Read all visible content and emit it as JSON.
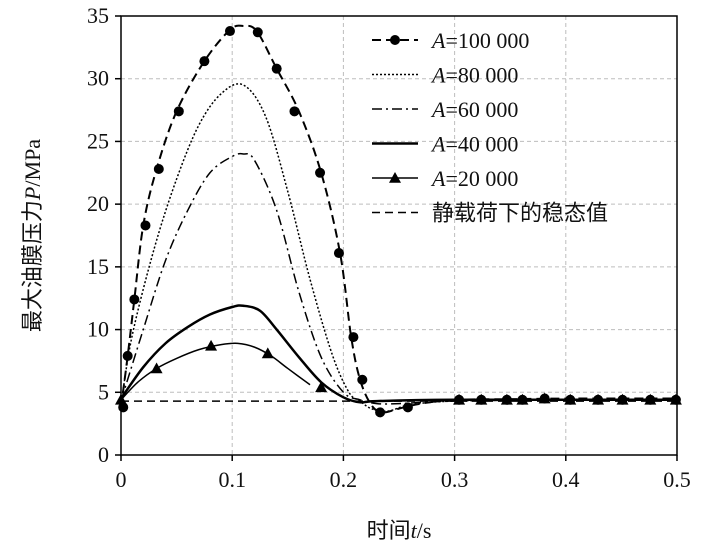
{
  "chart_data": {
    "type": "line",
    "xlabel": {
      "prefix": "时间",
      "variable": "t",
      "suffix": "/s"
    },
    "ylabel": {
      "prefix": "最大油膜压力",
      "variable": "P",
      "suffix": "/MPa"
    },
    "xlim": [
      0,
      0.5
    ],
    "ylim": [
      0,
      35
    ],
    "xticks": [
      0,
      0.1,
      0.2,
      0.3,
      0.4,
      0.5
    ],
    "xtick_labels": [
      "0",
      "0.1",
      "0.2",
      "0.3",
      "0.4",
      "0.5"
    ],
    "yticks": [
      0,
      5,
      10,
      15,
      20,
      25,
      30,
      35
    ],
    "ytick_labels": [
      "0",
      "5",
      "10",
      "15",
      "20",
      "25",
      "30",
      "35"
    ],
    "grid": true,
    "legend_position": "top-right",
    "series": [
      {
        "name": "=100 000",
        "name_variable": "A",
        "style": "dash-circle",
        "x": [
          0,
          0.006,
          0.012,
          0.02,
          0.032,
          0.05,
          0.075,
          0.098,
          0.11,
          0.122,
          0.14,
          0.16,
          0.18,
          0.197,
          0.207,
          0.215,
          0.225,
          0.235,
          0.25,
          0.27,
          0.3,
          0.35,
          0.4,
          0.45,
          0.5
        ],
        "y": [
          3.8,
          7.9,
          12.4,
          18.3,
          22.8,
          27.4,
          31.4,
          33.9,
          34.2,
          33.8,
          30.8,
          27.4,
          22.5,
          16.1,
          9.4,
          6.0,
          4.0,
          3.4,
          3.7,
          4.1,
          4.4,
          4.45,
          4.5,
          4.5,
          4.5
        ],
        "marker_x": [
          0.002,
          0.006,
          0.012,
          0.022,
          0.034,
          0.052,
          0.075,
          0.098,
          0.123,
          0.14,
          0.156,
          0.179,
          0.196,
          0.209,
          0.217,
          0.233,
          0.258,
          0.304,
          0.324,
          0.347,
          0.361,
          0.381,
          0.404,
          0.429,
          0.451,
          0.476,
          0.499
        ],
        "marker_y": [
          3.8,
          7.9,
          12.4,
          18.3,
          22.8,
          27.4,
          31.4,
          33.8,
          33.7,
          30.8,
          27.4,
          22.5,
          16.1,
          9.4,
          6.0,
          3.4,
          3.8,
          4.4,
          4.4,
          4.4,
          4.4,
          4.5,
          4.4,
          4.4,
          4.4,
          4.4,
          4.4
        ]
      },
      {
        "name": "=80 000",
        "name_variable": "A",
        "style": "dotted",
        "x": [
          0,
          0.01,
          0.03,
          0.05,
          0.07,
          0.09,
          0.11,
          0.13,
          0.15,
          0.17,
          0.19,
          0.205,
          0.215,
          0.225,
          0.24,
          0.26,
          0.3,
          0.4,
          0.5
        ],
        "y": [
          4.0,
          9.5,
          16.5,
          22.0,
          26.3,
          28.8,
          29.5,
          27.0,
          21.0,
          14.0,
          8.0,
          5.0,
          4.3,
          3.7,
          3.5,
          4.0,
          4.3,
          4.4,
          4.4
        ]
      },
      {
        "name": "=60 000",
        "name_variable": "A",
        "style": "dash-dot",
        "x": [
          0,
          0.02,
          0.04,
          0.06,
          0.08,
          0.1,
          0.11,
          0.12,
          0.14,
          0.16,
          0.18,
          0.2,
          0.215,
          0.23,
          0.25,
          0.3,
          0.4,
          0.5
        ],
        "y": [
          4.3,
          10.0,
          15.5,
          19.5,
          22.5,
          23.8,
          24.0,
          23.5,
          19.5,
          13.0,
          7.8,
          5.0,
          4.4,
          4.1,
          4.1,
          4.3,
          4.4,
          4.4
        ]
      },
      {
        "name": "=40 000",
        "name_variable": "A",
        "style": "solid",
        "x": [
          0,
          0.02,
          0.04,
          0.06,
          0.08,
          0.1,
          0.11,
          0.125,
          0.14,
          0.16,
          0.18,
          0.2,
          0.215,
          0.23,
          0.3,
          0.4,
          0.5
        ],
        "y": [
          4.5,
          7.0,
          8.9,
          10.2,
          11.2,
          11.8,
          11.9,
          11.5,
          10.0,
          7.8,
          5.8,
          4.6,
          4.2,
          4.3,
          4.4,
          4.4,
          4.4
        ]
      },
      {
        "name": "=20 000",
        "name_variable": "A",
        "style": "solid-triangle",
        "x": [
          0,
          0.015,
          0.032,
          0.05,
          0.07,
          0.09,
          0.105,
          0.12,
          0.135,
          0.15,
          0.17
        ],
        "y": [
          4.4,
          5.8,
          6.9,
          7.7,
          8.4,
          8.8,
          8.9,
          8.6,
          7.9,
          6.9,
          5.6
        ],
        "marker_x": [
          0,
          0.032,
          0.081,
          0.132,
          0.18,
          0.304,
          0.324,
          0.347,
          0.361,
          0.381,
          0.404,
          0.429,
          0.451,
          0.476,
          0.499
        ],
        "marker_y": [
          4.4,
          6.9,
          8.7,
          8.1,
          5.4,
          4.4,
          4.4,
          4.4,
          4.4,
          4.5,
          4.4,
          4.4,
          4.4,
          4.4,
          4.4
        ]
      },
      {
        "name": "静载荷下的稳态值",
        "style": "dashed",
        "x": [
          0,
          0.5
        ],
        "y": [
          4.3,
          4.3
        ]
      }
    ]
  }
}
